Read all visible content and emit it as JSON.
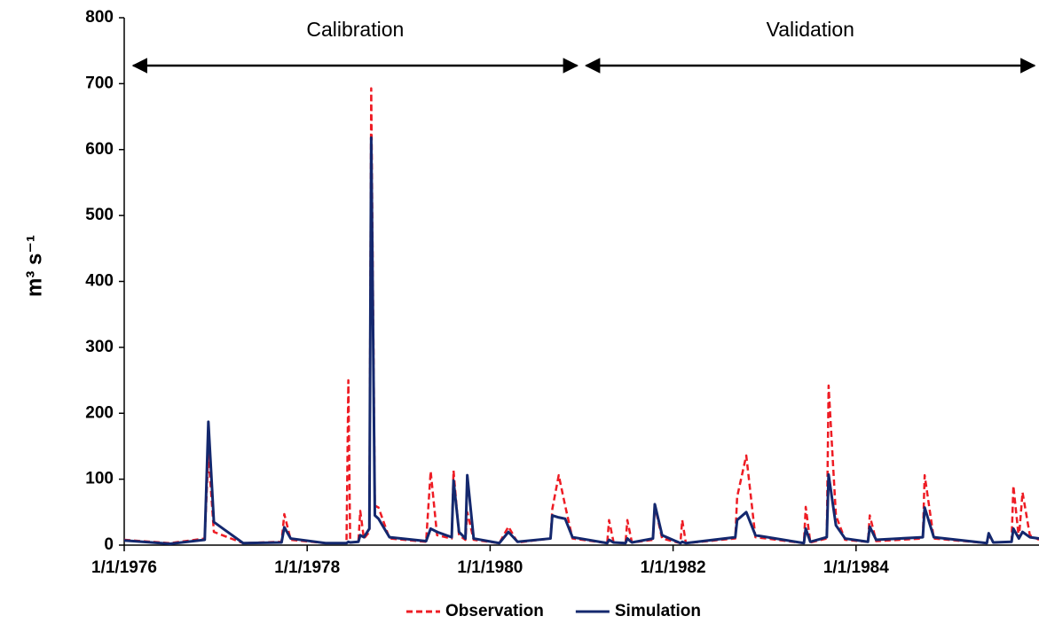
{
  "chart_data": {
    "type": "line",
    "y_label": "m³ s⁻¹",
    "x": [
      1976.0,
      1976.5,
      1976.88,
      1976.92,
      1976.98,
      1977.3,
      1977.72,
      1977.75,
      1977.82,
      1978.2,
      1978.43,
      1978.45,
      1978.47,
      1978.56,
      1978.58,
      1978.62,
      1978.68,
      1978.7,
      1978.74,
      1978.78,
      1978.9,
      1979.3,
      1979.35,
      1979.42,
      1979.58,
      1979.6,
      1979.66,
      1979.73,
      1979.75,
      1979.82,
      1980.1,
      1980.2,
      1980.3,
      1980.66,
      1980.68,
      1980.75,
      1980.82,
      1980.9,
      1981.28,
      1981.3,
      1981.35,
      1981.48,
      1981.5,
      1981.55,
      1981.78,
      1981.8,
      1981.88,
      1982.08,
      1982.1,
      1982.14,
      1982.68,
      1982.7,
      1982.8,
      1982.9,
      1983.43,
      1983.45,
      1983.5,
      1983.68,
      1983.7,
      1983.78,
      1983.88,
      1984.13,
      1984.15,
      1984.22,
      1984.73,
      1984.75,
      1984.85,
      1985.43,
      1985.45,
      1985.5,
      1985.7,
      1985.72,
      1985.78,
      1985.82,
      1985.9,
      1986.0
    ],
    "series": [
      {
        "name": "Observation",
        "color": "#ee1c24",
        "dashed": true,
        "values": [
          8,
          3,
          10,
          140,
          20,
          3,
          5,
          47,
          8,
          3,
          3,
          250,
          4,
          5,
          52,
          10,
          20,
          693,
          60,
          57,
          10,
          5,
          112,
          15,
          10,
          113,
          15,
          8,
          50,
          8,
          3,
          28,
          4,
          10,
          55,
          106,
          60,
          10,
          3,
          38,
          4,
          3,
          38,
          4,
          8,
          60,
          10,
          3,
          38,
          3,
          10,
          73,
          136,
          12,
          3,
          58,
          4,
          10,
          242,
          45,
          8,
          5,
          45,
          6,
          10,
          106,
          10,
          3,
          15,
          4,
          5,
          90,
          10,
          80,
          15,
          8
        ]
      },
      {
        "name": "Simulation",
        "color": "#14286e",
        "dashed": false,
        "values": [
          7,
          2,
          8,
          187,
          35,
          3,
          4,
          27,
          10,
          3,
          3,
          5,
          4,
          5,
          15,
          12,
          25,
          618,
          45,
          40,
          12,
          6,
          25,
          20,
          12,
          98,
          20,
          10,
          106,
          10,
          3,
          20,
          5,
          10,
          45,
          42,
          40,
          12,
          3,
          8,
          4,
          3,
          10,
          4,
          10,
          62,
          15,
          3,
          5,
          3,
          12,
          38,
          50,
          15,
          3,
          25,
          5,
          12,
          107,
          30,
          10,
          5,
          28,
          8,
          12,
          57,
          12,
          3,
          18,
          4,
          5,
          25,
          10,
          20,
          12,
          10
        ]
      }
    ],
    "xlim": [
      1976,
      1986
    ],
    "xticks": [
      {
        "value": 1976,
        "label": "1/1/1976"
      },
      {
        "value": 1978,
        "label": "1/1/1978"
      },
      {
        "value": 1980,
        "label": "1/1/1980"
      },
      {
        "value": 1982,
        "label": "1/1/1982"
      },
      {
        "value": 1984,
        "label": "1/1/1984"
      }
    ],
    "ylim": [
      0,
      800
    ],
    "yticks": [
      0,
      100,
      200,
      300,
      400,
      500,
      600,
      700,
      800
    ],
    "annotations": [
      {
        "text": "Calibration",
        "x": [
          1976.1,
          1980.95
        ]
      },
      {
        "text": "Validation",
        "x": [
          1981.05,
          1985.95
        ]
      }
    ],
    "legend": "bottom"
  }
}
